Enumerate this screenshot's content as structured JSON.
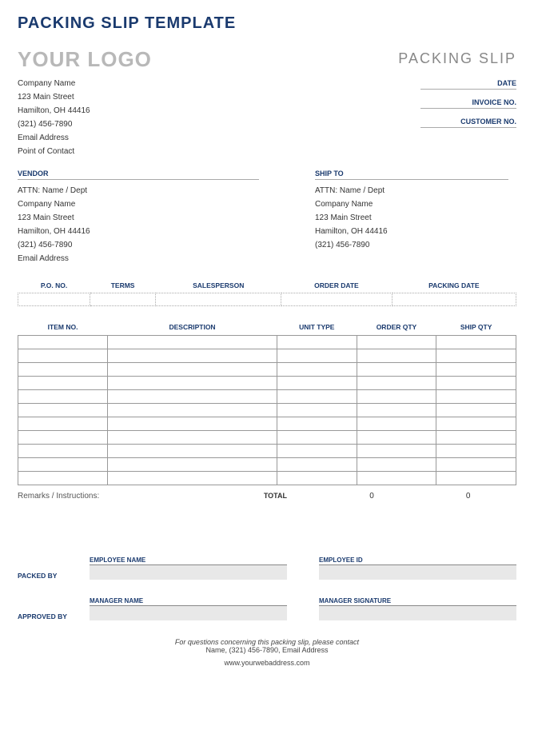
{
  "colors": {
    "accent": "#1a3a6e",
    "logo_grey": "#b8b8b8",
    "title_grey": "#888888",
    "border": "#999999",
    "dotted_border": "#aaaaaa",
    "fill_grey": "#e8e8e8",
    "background": "#ffffff"
  },
  "main_title": "PACKING SLIP TEMPLATE",
  "logo_text": "YOUR LOGO",
  "slip_title": "PACKING SLIP",
  "company": {
    "name": "Company Name",
    "street": "123 Main Street",
    "city": "Hamilton, OH 44416",
    "phone": "(321) 456-7890",
    "email": "Email Address",
    "contact": "Point of Contact"
  },
  "meta_labels": {
    "date": "DATE",
    "invoice": "INVOICE NO.",
    "customer": "CUSTOMER NO."
  },
  "vendor": {
    "heading": "VENDOR",
    "attn": "ATTN: Name / Dept",
    "name": "Company Name",
    "street": "123 Main Street",
    "city": "Hamilton, OH 44416",
    "phone": "(321) 456-7890",
    "email": "Email Address"
  },
  "shipto": {
    "heading": "SHIP TO",
    "attn": "ATTN: Name / Dept",
    "name": "Company Name",
    "street": "123 Main Street",
    "city": "Hamilton, OH 44416",
    "phone": "(321) 456-7890"
  },
  "order_headers": [
    "P.O. NO.",
    "TERMS",
    "SALESPERSON",
    "ORDER DATE",
    "PACKING DATE"
  ],
  "items_headers": [
    "ITEM NO.",
    "DESCRIPTION",
    "UNIT TYPE",
    "ORDER QTY",
    "SHIP QTY"
  ],
  "items_col_widths": [
    "18%",
    "34%",
    "16%",
    "16%",
    "16%"
  ],
  "items_row_count": 11,
  "remarks_label": "Remarks / Instructions:",
  "total_label": "TOTAL",
  "totals": {
    "order_qty": "0",
    "ship_qty": "0"
  },
  "sign": {
    "packed_label": "PACKED BY",
    "approved_label": "APPROVED BY",
    "emp_name": "EMPLOYEE NAME",
    "emp_id": "EMPLOYEE ID",
    "mgr_name": "MANAGER NAME",
    "mgr_sig": "MANAGER SIGNATURE"
  },
  "footer": {
    "line1": "For questions concerning this packing slip, please contact",
    "line2": "Name, (321) 456-7890, Email Address",
    "line3": "www.yourwebaddress.com"
  }
}
